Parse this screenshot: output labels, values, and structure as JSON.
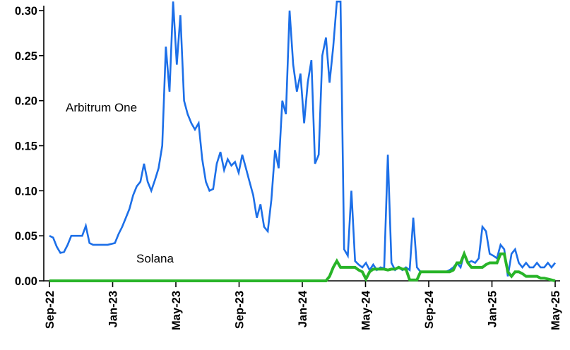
{
  "chart_data": {
    "type": "line",
    "grid": false,
    "legend_position": "inline-annotations",
    "x_axis": {
      "tick_labels": [
        "Sep-22",
        "Jan-23",
        "May-23",
        "Sep-23",
        "Jan-24",
        "May-24",
        "Sep-24",
        "Jan-25",
        "May-25"
      ],
      "label_rotation_deg": -90
    },
    "y_axis": {
      "min": 0.0,
      "max": 0.3,
      "tick_values": [
        0.0,
        0.05,
        0.1,
        0.15,
        0.2,
        0.25,
        0.3
      ],
      "tick_labels": [
        "0.00",
        "0.05",
        "0.10",
        "0.15",
        "0.20",
        "0.25",
        "0.30"
      ]
    },
    "series": [
      {
        "name": "Arbitrum One",
        "color": "#1c6fe8",
        "stroke_width": 2.6,
        "values": [
          0.05,
          0.048,
          0.038,
          0.031,
          0.032,
          0.04,
          0.05,
          0.05,
          0.05,
          0.05,
          0.061,
          0.042,
          0.04,
          0.04,
          0.04,
          0.04,
          0.04,
          0.041,
          0.042,
          0.052,
          0.06,
          0.07,
          0.08,
          0.095,
          0.105,
          0.11,
          0.13,
          0.11,
          0.1,
          0.112,
          0.125,
          0.15,
          0.26,
          0.21,
          0.31,
          0.24,
          0.295,
          0.2,
          0.185,
          0.175,
          0.168,
          0.175,
          0.135,
          0.11,
          0.1,
          0.102,
          0.13,
          0.143,
          0.123,
          0.135,
          0.128,
          0.132,
          0.12,
          0.14,
          0.125,
          0.11,
          0.095,
          0.07,
          0.085,
          0.06,
          0.055,
          0.09,
          0.145,
          0.125,
          0.2,
          0.185,
          0.3,
          0.24,
          0.21,
          0.23,
          0.175,
          0.22,
          0.245,
          0.13,
          0.14,
          0.25,
          0.27,
          0.22,
          0.26,
          0.31,
          0.31,
          0.035,
          0.028,
          0.1,
          0.022,
          0.018,
          0.015,
          0.02,
          0.012,
          0.018,
          0.012,
          0.015,
          0.014,
          0.14,
          0.02,
          0.012,
          0.015,
          0.012,
          0.015,
          0.012,
          0.07,
          0.015,
          0.01,
          0.01,
          0.01,
          0.01,
          0.01,
          0.01,
          0.01,
          0.01,
          0.012,
          0.015,
          0.02,
          0.015,
          0.03,
          0.02,
          0.022,
          0.02,
          0.025,
          0.06,
          0.055,
          0.03,
          0.028,
          0.025,
          0.04,
          0.035,
          0.005,
          0.03,
          0.035,
          0.02,
          0.015,
          0.02,
          0.015,
          0.015,
          0.02,
          0.015,
          0.015,
          0.02,
          0.015,
          0.02
        ]
      },
      {
        "name": "Solana",
        "color": "#28b428",
        "stroke_width": 4,
        "values": [
          0.0,
          0.0,
          0.0,
          0.0,
          0.0,
          0.0,
          0.0,
          0.0,
          0.0,
          0.0,
          0.0,
          0.0,
          0.0,
          0.0,
          0.0,
          0.0,
          0.0,
          0.0,
          0.0,
          0.0,
          0.0,
          0.0,
          0.0,
          0.0,
          0.0,
          0.0,
          0.0,
          0.0,
          0.0,
          0.0,
          0.0,
          0.0,
          0.0,
          0.0,
          0.0,
          0.0,
          0.0,
          0.0,
          0.0,
          0.0,
          0.0,
          0.0,
          0.0,
          0.0,
          0.0,
          0.0,
          0.0,
          0.0,
          0.0,
          0.0,
          0.0,
          0.0,
          0.0,
          0.0,
          0.0,
          0.0,
          0.0,
          0.0,
          0.0,
          0.0,
          0.0,
          0.0,
          0.0,
          0.0,
          0.0,
          0.0,
          0.0,
          0.0,
          0.0,
          0.0,
          0.0,
          0.0,
          0.0,
          0.0,
          0.0,
          0.0,
          0.0,
          0.005,
          0.015,
          0.022,
          0.015,
          0.015,
          0.015,
          0.015,
          0.015,
          0.012,
          0.01,
          0.002,
          0.01,
          0.013,
          0.013,
          0.013,
          0.013,
          0.012,
          0.013,
          0.013,
          0.015,
          0.013,
          0.013,
          0.001,
          0.001,
          0.001,
          0.01,
          0.01,
          0.01,
          0.01,
          0.01,
          0.01,
          0.01,
          0.01,
          0.01,
          0.012,
          0.02,
          0.02,
          0.03,
          0.02,
          0.015,
          0.015,
          0.015,
          0.015,
          0.018,
          0.02,
          0.02,
          0.02,
          0.03,
          0.03,
          0.01,
          0.005,
          0.01,
          0.01,
          0.008,
          0.005,
          0.005,
          0.005,
          0.005,
          0.003,
          0.003,
          0.002,
          0.001,
          0.0
        ]
      }
    ],
    "annotations": [
      {
        "text": "Arbitrum One",
        "approx_position": "upper-left area of plot"
      },
      {
        "text": "Solana",
        "approx_position": "above flat green line, lower-left"
      }
    ]
  },
  "colors": {
    "axis": "#000000",
    "background": "#ffffff",
    "arbitrum_blue": "#1c6fe8",
    "solana_green": "#28b428"
  }
}
